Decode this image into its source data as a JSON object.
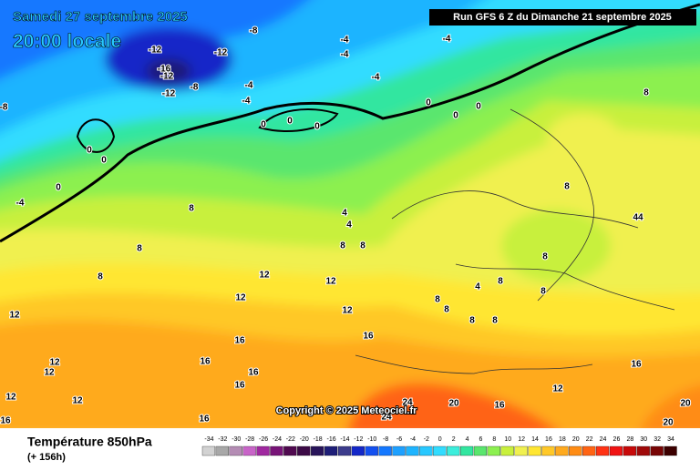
{
  "header": {
    "date": "Samedi 27 septembre 2025",
    "time": "20:00 locale",
    "run": "Run GFS 6 Z du Dimanche 21 septembre 2025"
  },
  "copyright": "Copyright © 2025 Meteociel.fr",
  "contour_labels": [
    -8,
    -12,
    -16,
    -12,
    -12,
    -8,
    -12,
    -4,
    -4,
    -8,
    -4,
    -4,
    -4,
    -4,
    0,
    0,
    0,
    0,
    0,
    0,
    0,
    0,
    0,
    -4,
    8,
    8,
    44,
    8,
    4,
    4,
    8,
    8,
    8,
    8,
    12,
    12,
    12,
    12,
    12,
    8,
    4,
    8,
    8,
    8,
    8,
    16,
    12,
    12,
    16,
    16,
    16,
    16,
    12,
    12,
    16,
    16,
    16,
    16,
    12,
    24,
    24,
    20,
    20,
    20,
    8,
    8
  ],
  "legend": {
    "title": "Température 850hPa",
    "subtitle": "(+ 156h)",
    "scale": [
      -34,
      -32,
      -30,
      -28,
      -26,
      -24,
      -22,
      -20,
      -18,
      -16,
      -14,
      -12,
      -10,
      -8,
      -6,
      -4,
      -2,
      0,
      2,
      4,
      6,
      8,
      10,
      12,
      14,
      16,
      18,
      20,
      22,
      24,
      26,
      28,
      30,
      32,
      34
    ],
    "colors": [
      "#d2d2d2",
      "#a8a8a8",
      "#b48cb4",
      "#c864c8",
      "#a028a0",
      "#781478",
      "#500a50",
      "#3c0a46",
      "#28145a",
      "#1e1e78",
      "#3c3c8c",
      "#1428c8",
      "#1450f0",
      "#1478ff",
      "#1ea0ff",
      "#1eb4ff",
      "#28c8ff",
      "#32dcff",
      "#3ceedc",
      "#32e6a0",
      "#5ae66e",
      "#8cf050",
      "#c8f03c",
      "#f0f050",
      "#ffe632",
      "#ffc828",
      "#ffaa1e",
      "#ff8c14",
      "#ff6414",
      "#ff3214",
      "#f01414",
      "#c80a0a",
      "#a00a0a",
      "#780505",
      "#3c0000"
    ]
  }
}
